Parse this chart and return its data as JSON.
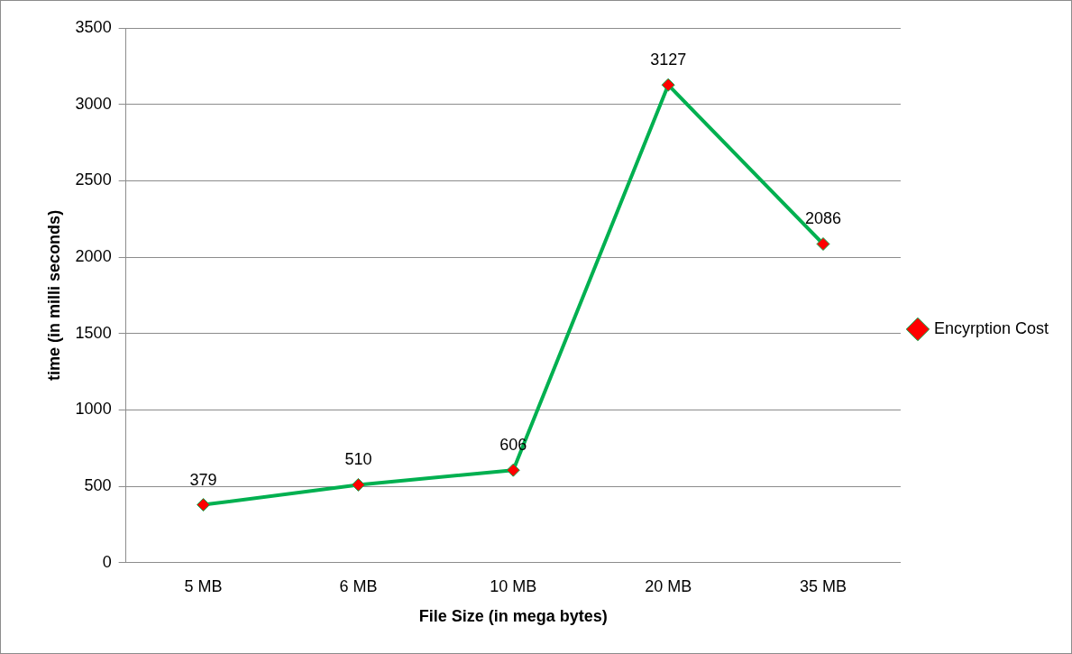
{
  "chart_data": {
    "type": "line",
    "xlabel": "File Size (in mega bytes)",
    "ylabel": "time (in milli seconds)",
    "categories": [
      "5 MB",
      "6 MB",
      "10 MB",
      "20 MB",
      "35 MB"
    ],
    "series": [
      {
        "name": "Encyrption Cost",
        "color": "#00b050",
        "values": [
          379,
          510,
          606,
          3127,
          2086
        ]
      }
    ],
    "ylim": [
      0,
      3500
    ],
    "yticks": [
      0,
      500,
      1000,
      1500,
      2000,
      2500,
      3000,
      3500
    ],
    "grid": "y",
    "legend": "right",
    "marker": "diamond",
    "line_style": "solid",
    "data_labels": true
  }
}
